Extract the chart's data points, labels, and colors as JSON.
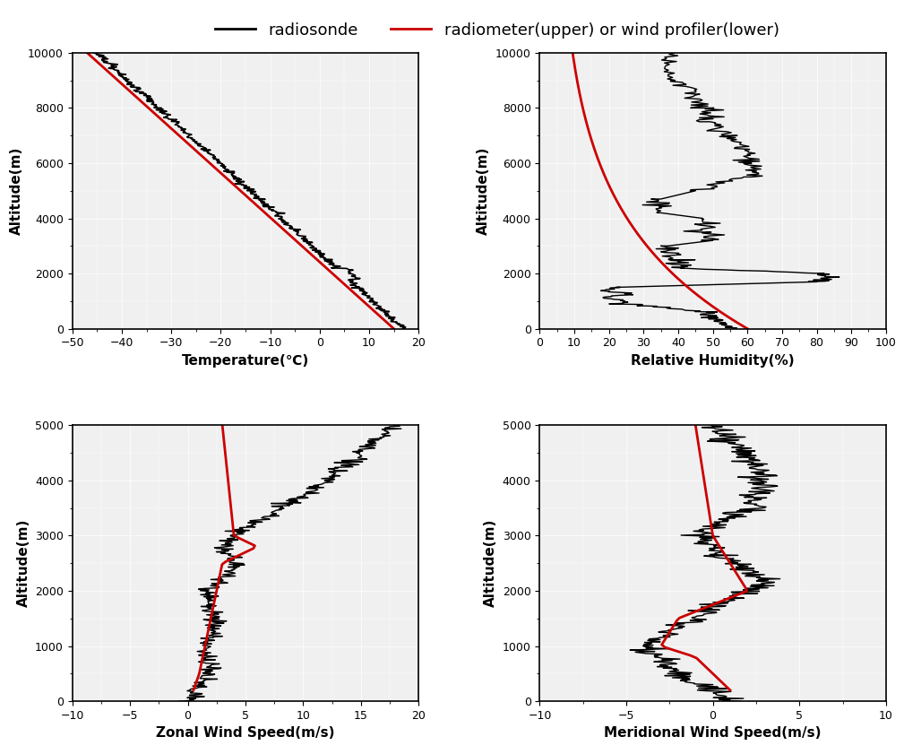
{
  "legend_text": "— radiosonde  — radiometer(upper) or wind profiler(lower)",
  "radiosonde_color": "#000000",
  "radiometer_color": "#cc0000",
  "background_color": "#f0f0f0",
  "grid_color": "#ffffff",
  "temp_xlim": [
    -50,
    20
  ],
  "temp_xticks": [
    -50,
    -40,
    -30,
    -20,
    -10,
    0,
    10,
    20
  ],
  "temp_ylim": [
    0,
    10000
  ],
  "temp_yticks": [
    0,
    2000,
    4000,
    6000,
    8000,
    10000
  ],
  "temp_xlabel": "Temperature(℃)",
  "temp_ylabel": "Altitude(m)",
  "rh_xlim": [
    0,
    100
  ],
  "rh_xticks": [
    0,
    10,
    20,
    30,
    40,
    50,
    60,
    70,
    80,
    90,
    100
  ],
  "rh_ylim": [
    0,
    10000
  ],
  "rh_yticks": [
    0,
    2000,
    4000,
    6000,
    8000,
    10000
  ],
  "rh_xlabel": "Relative Humidity(%)",
  "rh_ylabel": "Altitude(m)",
  "wind_u_xlim": [
    -10,
    20
  ],
  "wind_u_xticks": [
    -10,
    -5,
    0,
    5,
    10,
    15,
    20
  ],
  "wind_u_ylim": [
    0,
    5000
  ],
  "wind_u_yticks": [
    0,
    1000,
    2000,
    3000,
    4000,
    5000
  ],
  "wind_u_xlabel": "Zonal Wind Speed(m/s)",
  "wind_u_ylabel": "Altitude(m)",
  "wind_v_xlim": [
    -10,
    10
  ],
  "wind_v_xticks": [
    -10,
    -5,
    0,
    5,
    10
  ],
  "wind_v_ylim": [
    0,
    5000
  ],
  "wind_v_yticks": [
    0,
    1000,
    2000,
    3000,
    4000,
    5000
  ],
  "wind_v_xlabel": "Meridional Wind Speed(m/s)",
  "wind_v_ylabel": "Altitude(m)"
}
